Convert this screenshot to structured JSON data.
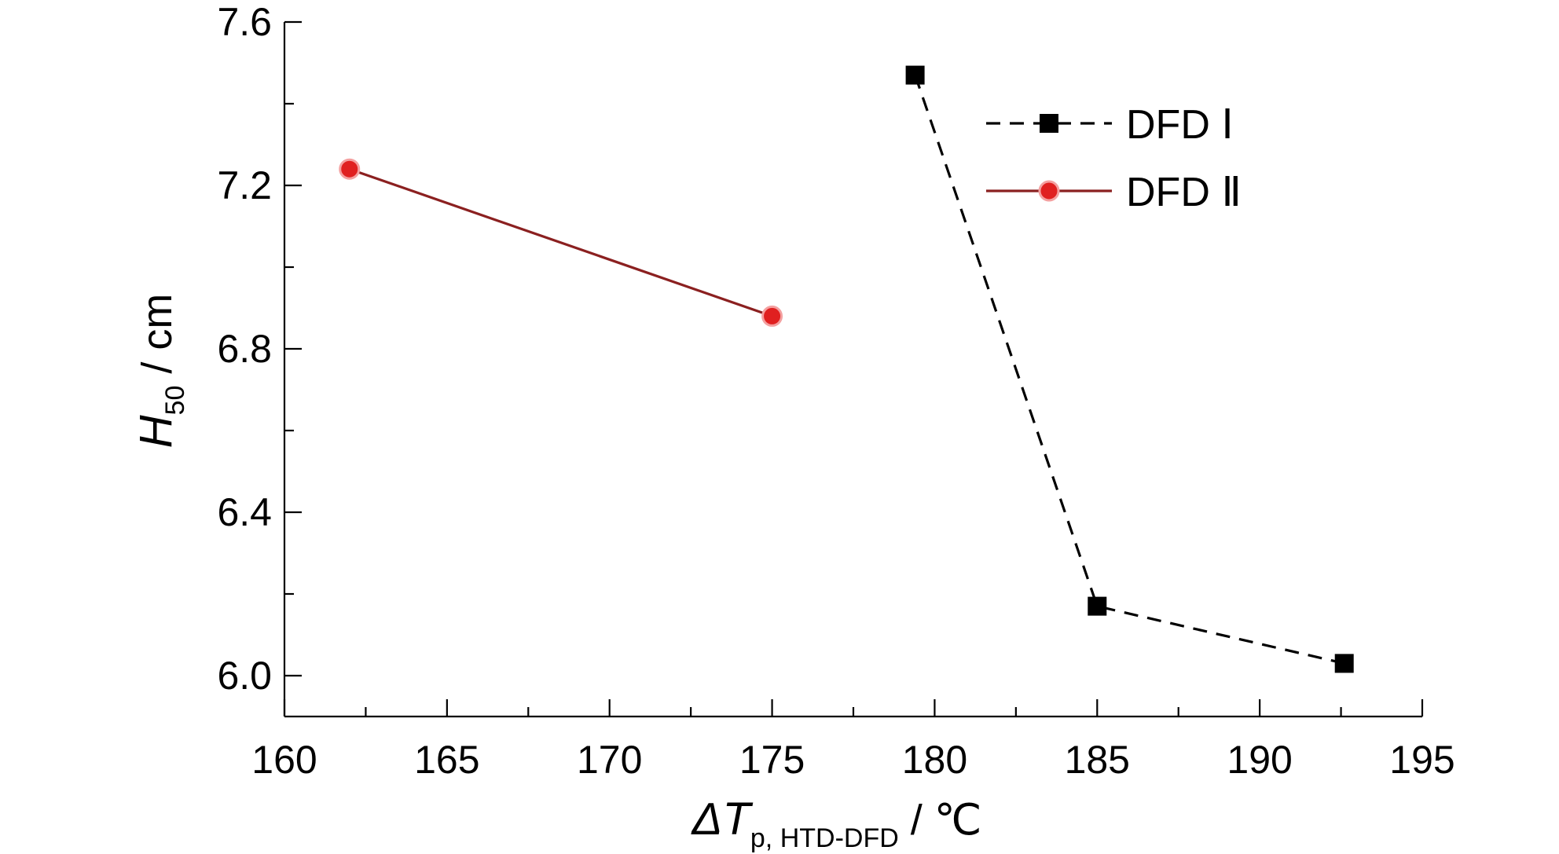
{
  "chart_data": {
    "type": "line",
    "title": "",
    "xlabel": {
      "symbol": "ΔT",
      "subscript": "p, HTD-DFD",
      "unit": " / ℃"
    },
    "ylabel": {
      "symbol": "H",
      "subscript": "50",
      "unit": " / cm"
    },
    "xlim": [
      160,
      195
    ],
    "ylim": [
      5.9,
      7.6
    ],
    "x_ticks": [
      160,
      165,
      170,
      175,
      180,
      185,
      190,
      195
    ],
    "x_tick_labels": [
      "160",
      "165",
      "170",
      "175",
      "180",
      "185",
      "190",
      "195"
    ],
    "x_minor_ticks": [
      162.5,
      167.5,
      172.5,
      177.5,
      182.5,
      187.5,
      192.5
    ],
    "y_ticks": [
      6.0,
      6.4,
      6.8,
      7.2,
      7.6
    ],
    "y_tick_labels": [
      "6.0",
      "6.4",
      "6.8",
      "7.2",
      "7.6"
    ],
    "y_minor_ticks": [
      6.2,
      6.6,
      7.0,
      7.4
    ],
    "grid": false,
    "legend_position": "top-right",
    "series": [
      {
        "name": "DFD Ⅰ",
        "color": "#000000",
        "line_style": "dashed",
        "marker": "square",
        "x": [
          179.4,
          185.0,
          192.6
        ],
        "y": [
          7.47,
          6.17,
          6.03
        ]
      },
      {
        "name": "DFD Ⅱ",
        "color": "#e02020",
        "line_color": "#8b2020",
        "line_style": "solid",
        "marker": "circle",
        "x": [
          162.0,
          175.0
        ],
        "y": [
          7.24,
          6.88
        ]
      }
    ]
  }
}
